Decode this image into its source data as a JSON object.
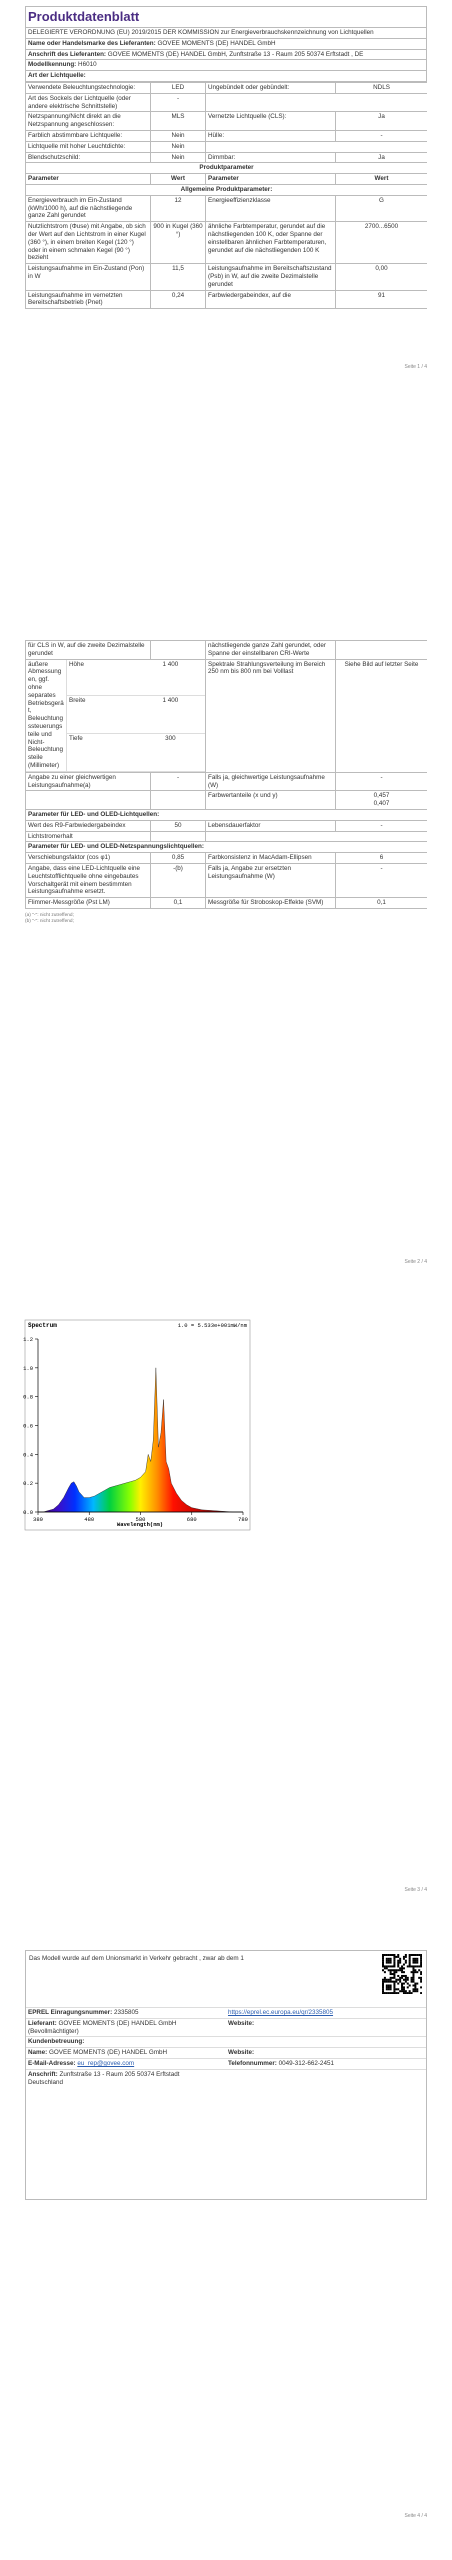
{
  "page1": {
    "title": "Produktdatenblatt",
    "regulation": "DELEGIERTE VERORDNUNG (EU) 2019/2015 DER KOMMISSION zur Energieverbrauchskennzeichnung von Lichtquellen",
    "supplier_name": {
      "label": "Name oder Handelsmarke des Lieferanten:",
      "value": "GOVEE MOMENTS (DE) HANDEL GmbH"
    },
    "supplier_address": {
      "label": "Anschrift des Lieferanten:",
      "value": "GOVEE MOMENTS (DE) HANDEL GmbH, Zunftstraße 13 - Raum 205 50374 Erftstadt , DE"
    },
    "model": {
      "label": "Modellkennung:",
      "value": "H6010"
    },
    "section": "Art der Lichtquelle:",
    "rows": [
      [
        "Verwendete Beleuchtungstechnologie:",
        "LED",
        "Ungebündelt oder gebündelt:",
        "NDLS"
      ],
      [
        "Art des Sockels der Lichtquelle (oder andere elektrische Schnittstelle)",
        "-"
      ],
      [
        "Netzspannung/Nicht direkt an die Netzspannung angeschlossen:",
        "MLS",
        "Vernetzte Lichtquelle (CLS):",
        "Ja"
      ],
      [
        "Farblich abstimmbare Lichtquelle:",
        "Nein",
        "Hülle:",
        "-"
      ],
      [
        "Lichtquelle mit hoher Leuchtdichte:",
        "Nein"
      ],
      [
        "Blendschutzschild:",
        "Nein",
        "Dimmbar:",
        "Ja"
      ],
      [
        "Produktparameter"
      ],
      [
        "Parameter",
        "Wert",
        "Parameter",
        "Wert"
      ],
      [
        "Allgemeine Produktparameter:"
      ],
      [
        "Energieverbrauch im Ein-Zustand (kWh/1000 h), auf die nächstliegende ganze Zahl gerundet",
        "12",
        "Energieeffizienzklasse",
        "G"
      ],
      [
        "Nutzlichtstrom (Φuse) mit Angabe, ob sich der Wert auf den Lichtstrom in einer Kugel (360 °), in einem breiten Kegel (120 °) oder in einem schmalen Kegel (90 °) bezieht",
        "900 in Kugel (360 °)",
        "ähnliche Farbtemperatur, gerundet auf die nächstliegenden 100 K, oder Spanne der einstellbaren ähnlichen Farbtemperaturen, gerundet auf die nächstliegenden 100 K",
        "2700...6500"
      ],
      [
        "Leistungsaufnahme im Ein-Zustand (Pon) in W",
        "11,5",
        "Leistungsaufnahme im Bereitschaftszustand (Psb) in W, auf die zweite Dezimalstelle gerundet",
        "0,00"
      ],
      [
        "Leistungsaufnahme im vernetzten Bereitschaftsbetrieb (Pnet)",
        "0,24",
        "Farbwiedergabeindex, auf die",
        "91"
      ]
    ],
    "footer": "Seite 1 / 4"
  },
  "page2": {
    "rows": [
      [
        "für CLS in W, auf die zweite Dezimalstelle gerundet",
        null,
        "nächstliegende ganze Zahl gerundet, oder Spanne der einstellbaren CRI-Werte",
        null
      ],
      [
        {
          "label": "äußere Abmessungen, ggf. ohne separates Betriebsgerät, Beleuchtungssteuerungsteile und Nicht-Beleuchtungsteile (Millimeter)",
          "dims": [
            [
              "Höhe",
              "1 400"
            ],
            [
              "Breite",
              "1 400"
            ],
            [
              "Tiefe",
              "300"
            ]
          ]
        },
        "Spektrale Strahlungsverteilung im Bereich 250 nm bis 800 nm bei Volllast",
        "Siehe Bild auf letzter Seite"
      ],
      [
        "Angabe zu einer gleichwertigen Leistungsaufnahme(a)",
        "-",
        "Falls ja, gleichwertige Leistungsaufnahme (W)",
        "-"
      ],
      [
        null,
        null,
        "Farbwertanteile (x und y)",
        "0,457\n0,407"
      ],
      [
        "Parameter für LED- und OLED-Lichtquellen:"
      ],
      [
        "Wert des R9-Farbwiedergabeindex",
        "50",
        "Lebensdauerfaktor",
        "-"
      ],
      [
        "Lichtstromerhalt",
        null
      ],
      [
        "Parameter für LED- und OLED-Netzspannungslichtquellen:"
      ],
      [
        "Verschiebungsfaktor (cos φ1)",
        "0,85",
        "Farbkonsistenz in MacAdam-Ellipsen",
        "6"
      ],
      [
        "Angabe, dass eine LED-Lichtquelle eine Leuchtstofflichtquelle ohne eingebautes Vorschaltgerät mit einem bestimmten Leistungsaufnahme ersetzt.",
        "-(b)",
        "Falls ja, Angabe zur ersetzten Leistungsaufnahme (W)",
        "-"
      ],
      [
        "Flimmer-Messgröße (Pst LM)",
        "0,1",
        "Messgröße für Stroboskop-Effekte (SVM)",
        "0,1"
      ]
    ],
    "footnotes": [
      "(a) \"-\": nicht zutreffend;",
      "(b) \"-\": nicht zutreffend;"
    ],
    "footer": "Seite 2 / 4"
  },
  "chart_data": {
    "type": "area",
    "title": "Spectrum",
    "annotation": "1.0 = 5.533e+001mW/nm",
    "x_label": "Wavelength(nm)",
    "x": [
      380,
      390,
      400,
      410,
      420,
      430,
      440,
      445,
      450,
      455,
      460,
      470,
      480,
      490,
      500,
      510,
      520,
      530,
      540,
      550,
      560,
      570,
      580,
      590,
      595,
      600,
      605,
      610,
      615,
      620,
      625,
      630,
      635,
      640,
      650,
      660,
      670,
      680,
      700,
      720,
      740,
      760,
      780
    ],
    "values": [
      0,
      0,
      0.01,
      0.02,
      0.05,
      0.1,
      0.17,
      0.2,
      0.21,
      0.18,
      0.14,
      0.1,
      0.1,
      0.11,
      0.13,
      0.15,
      0.17,
      0.18,
      0.19,
      0.2,
      0.21,
      0.22,
      0.24,
      0.28,
      0.4,
      0.35,
      0.5,
      1.0,
      0.45,
      0.55,
      0.78,
      0.35,
      0.3,
      0.2,
      0.13,
      0.08,
      0.05,
      0.03,
      0.015,
      0.01,
      0.005,
      0,
      0
    ],
    "xlim": [
      380,
      780
    ],
    "xticks": [
      380,
      480,
      580,
      680,
      780
    ],
    "ylim": [
      0,
      1.2
    ],
    "yticks": [
      {
        "value": 0,
        "label": "0.0"
      },
      {
        "value": 0.2,
        "label": "0.2"
      },
      {
        "value": 0.4,
        "label": "0.4"
      },
      {
        "value": 0.6,
        "label": "0.6"
      },
      {
        "value": 0.8,
        "label": "0.8"
      },
      {
        "value": 1,
        "label": "1.0"
      },
      {
        "value": 1.2,
        "label": "1.2"
      }
    ]
  },
  "page3": {
    "footer": "Seite 3 / 4"
  },
  "page4": {
    "notice": "Das Modell wurde auf dem Unionsmarkt in Verkehr gebracht , zwar ab dem 1",
    "rows": [
      [
        {
          "label": "EPREL Einragungsnummer:",
          "value": "2335805"
        },
        {
          "link": "https://eprel.ec.europa.eu/qr/2335805"
        }
      ],
      [
        {
          "label": "Lieferant:",
          "value": "GOVEE MOMENTS (DE) HANDEL GmbH (Bevollmächtigter)"
        },
        {
          "label": "Website:"
        }
      ],
      [
        {
          "label": "Kundenbetreuung:"
        }
      ],
      [
        {
          "label": "Name:",
          "value": "GOVEE MOMENTS (DE) HANDEL GmbH"
        },
        {
          "label": "Website:"
        }
      ],
      [
        {
          "label": "E-Mail-Adresse:",
          "link": "eu_rep@govee.com"
        },
        {
          "label": "Telefonnummer:",
          "value": "0049-312-662-2451"
        }
      ],
      [
        {
          "label": "Anschrift:",
          "value": "Zunftstraße 13 - Raum 205 50374 Erftstadt\nDeutschland"
        }
      ]
    ],
    "footer": "Seite 4 / 4"
  }
}
